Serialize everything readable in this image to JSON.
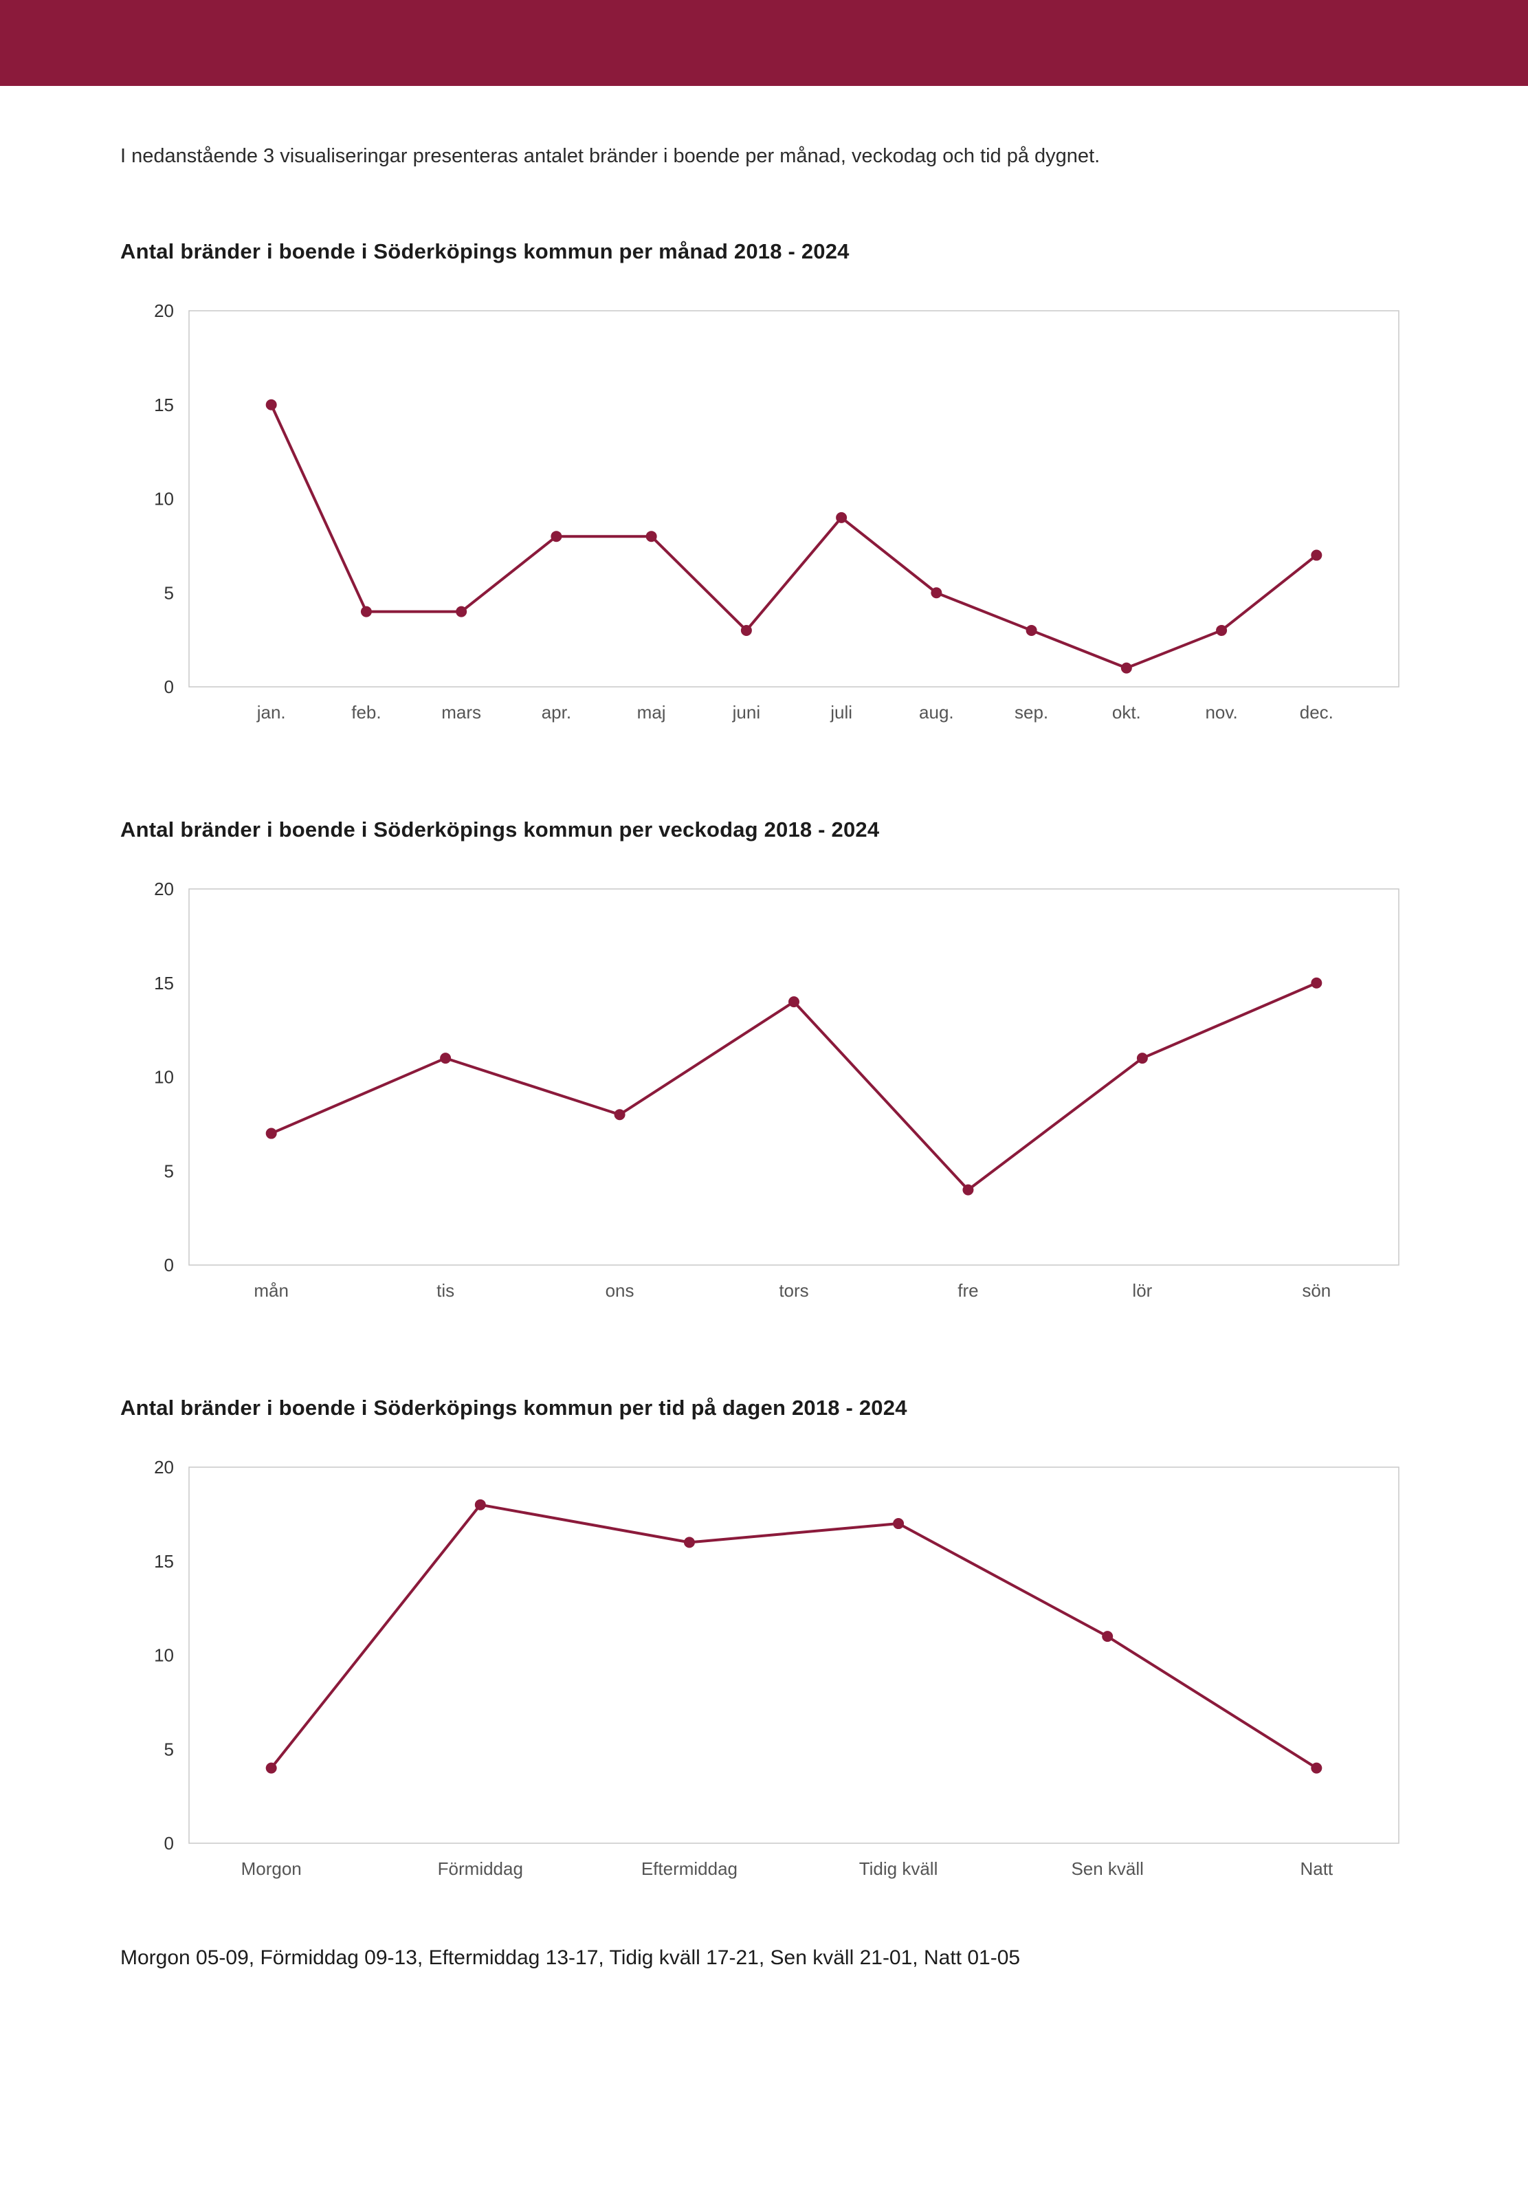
{
  "page": {
    "accent_color": "#8b1a3b",
    "intro": "I nedanstående 3 visualiseringar presenteras antalet bränder i boende per månad, veckodag och tid på dygnet.",
    "footer": "Morgon 05-09, Förmiddag 09-13, Eftermiddag 13-17, Tidig kväll 17-21, Sen kväll 21-01, Natt 01-05"
  },
  "chart_data": [
    {
      "type": "line",
      "title": "Antal bränder i boende i Söderköpings kommun per månad 2018 - 2024",
      "categories": [
        "jan.",
        "feb.",
        "mars",
        "apr.",
        "maj",
        "juni",
        "juli",
        "aug.",
        "sep.",
        "okt.",
        "nov.",
        "dec."
      ],
      "values": [
        15,
        4,
        4,
        8,
        8,
        3,
        9,
        5,
        3,
        1,
        3,
        7
      ],
      "xlabel": "",
      "ylabel": "",
      "ylim": [
        0,
        20
      ],
      "yticks": [
        0,
        5,
        10,
        15,
        20
      ],
      "line_color": "#8b1a3b",
      "marker": "circle",
      "grid": false,
      "legend_position": "none"
    },
    {
      "type": "line",
      "title": "Antal bränder i boende i Söderköpings kommun per veckodag 2018 - 2024",
      "categories": [
        "mån",
        "tis",
        "ons",
        "tors",
        "fre",
        "lör",
        "sön"
      ],
      "values": [
        7,
        11,
        8,
        14,
        4,
        11,
        15
      ],
      "xlabel": "",
      "ylabel": "",
      "ylim": [
        0,
        20
      ],
      "yticks": [
        0,
        5,
        10,
        15,
        20
      ],
      "line_color": "#8b1a3b",
      "marker": "circle",
      "grid": false,
      "legend_position": "none"
    },
    {
      "type": "line",
      "title": "Antal bränder i boende i Söderköpings kommun per tid på dagen 2018 - 2024",
      "categories": [
        "Morgon",
        "Förmiddag",
        "Eftermiddag",
        "Tidig kväll",
        "Sen kväll",
        "Natt"
      ],
      "values": [
        4,
        18,
        16,
        17,
        11,
        4
      ],
      "xlabel": "",
      "ylabel": "",
      "ylim": [
        0,
        20
      ],
      "yticks": [
        0,
        5,
        10,
        15,
        20
      ],
      "line_color": "#8b1a3b",
      "marker": "circle",
      "grid": false,
      "legend_position": "none"
    }
  ]
}
